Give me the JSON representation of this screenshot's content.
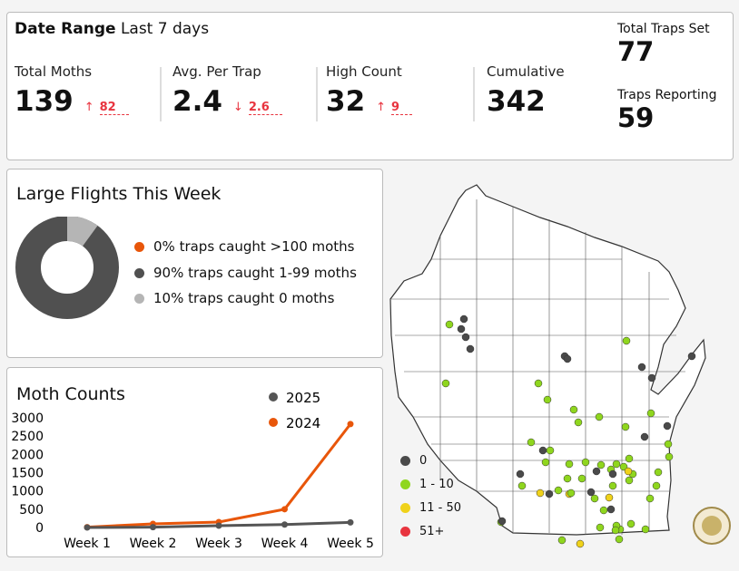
{
  "date_range": {
    "label": "Date Range",
    "value": "Last 7 days"
  },
  "metrics": [
    {
      "label": "Total Moths",
      "value": "139",
      "delta_dir": "↑",
      "delta": "82"
    },
    {
      "label": "Avg. Per Trap",
      "value": "2.4",
      "delta_dir": "↓",
      "delta": "2.6"
    },
    {
      "label": "High Count",
      "value": "32",
      "delta_dir": "↑",
      "delta": "9"
    },
    {
      "label": "Cumulative",
      "value": "342"
    }
  ],
  "traps": {
    "set_label": "Total Traps Set",
    "set_value": "77",
    "reporting_label": "Traps Reporting",
    "reporting_value": "59"
  },
  "flights": {
    "title": "Large Flights This Week",
    "items": [
      {
        "label": "0% traps caught >100 moths",
        "percent": 0,
        "color": "#e8560a"
      },
      {
        "label": "90% traps caught 1-99 moths",
        "percent": 90,
        "color": "#505050"
      },
      {
        "label": "10% traps caught 0 moths",
        "percent": 10,
        "color": "#b5b5b5"
      }
    ]
  },
  "chart_data": {
    "type": "line",
    "title": "Moth Counts",
    "categories": [
      "Week 1",
      "Week 2",
      "Week 3",
      "Week 4",
      "Week 5"
    ],
    "series": [
      {
        "name": "2025",
        "color": "#555555",
        "values": [
          0,
          10,
          50,
          80,
          140
        ]
      },
      {
        "name": "2024",
        "color": "#e8560a",
        "values": [
          10,
          100,
          150,
          500,
          2830
        ]
      }
    ],
    "yticks": [
      "3000",
      "2500",
      "2000",
      "1500",
      "1000",
      "500",
      "0"
    ],
    "ylim": [
      0,
      3000
    ],
    "legend": "top-right"
  },
  "map": {
    "legend": [
      {
        "label": "0",
        "color": "#4a4a4a"
      },
      {
        "label": "1 - 10",
        "color": "#8fd61e"
      },
      {
        "label": "11 - 50",
        "color": "#f0d21a"
      },
      {
        "label": "51+",
        "color": "#e8343f"
      }
    ]
  }
}
